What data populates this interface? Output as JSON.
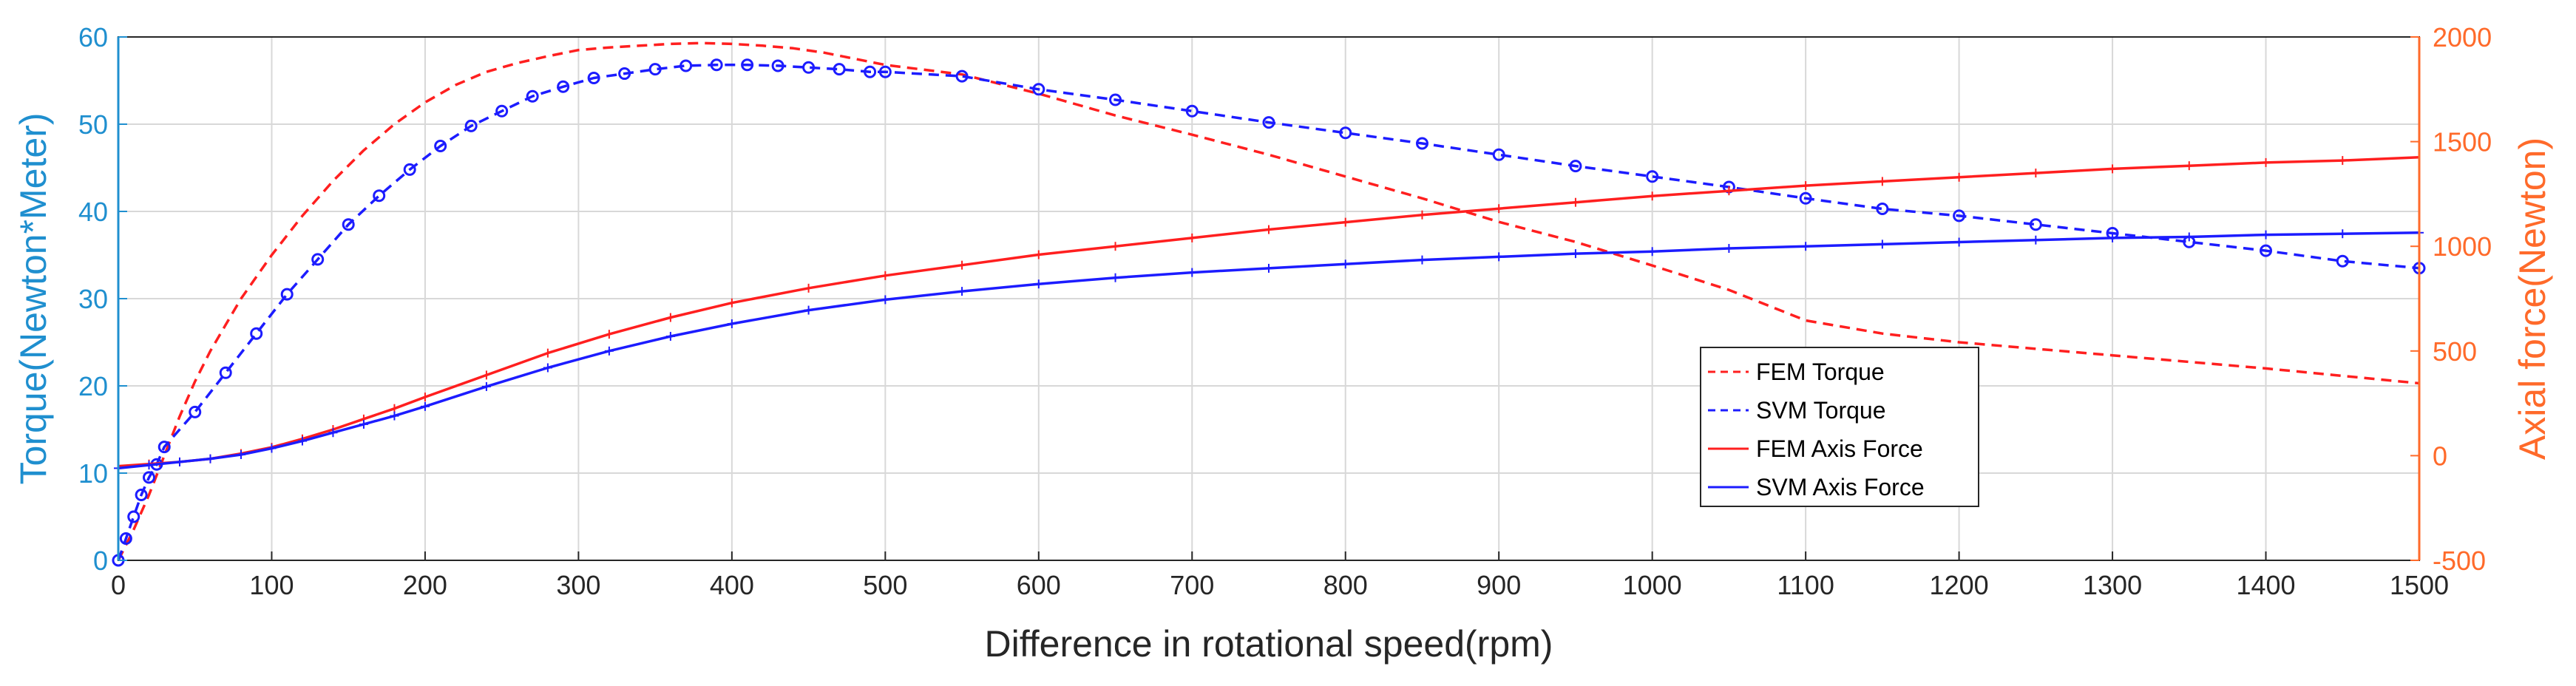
{
  "chart_data": {
    "type": "line",
    "xlabel": "Difference in rotational speed(rpm)",
    "ylabel_left": "Torque(Newton*Meter)",
    "ylabel_right": "Axial force(Newton)",
    "xlim": [
      0,
      1500
    ],
    "ylim_left": [
      0,
      60
    ],
    "ylim_right": [
      -500,
      2000
    ],
    "xticks": [
      "0",
      "100",
      "200",
      "300",
      "400",
      "500",
      "600",
      "700",
      "800",
      "900",
      "1000",
      "1100",
      "1200",
      "1300",
      "1400",
      "1500"
    ],
    "yticks_left": [
      "0",
      "10",
      "20",
      "30",
      "40",
      "50",
      "60"
    ],
    "yticks_right": [
      "-500",
      "0",
      "500",
      "1000",
      "1500",
      "2000"
    ],
    "grid": true,
    "legend_position": "lower-right",
    "colors": {
      "left_axis": "#1f8fcf",
      "right_axis": "#ff6a2a",
      "fem": "#ff1f1f",
      "svm": "#1c1cff"
    },
    "series": [
      {
        "name": "FEM Torque",
        "axis": "left",
        "style": "dashed",
        "color": "#ff1f1f",
        "x": [
          0,
          10,
          20,
          30,
          40,
          50,
          60,
          70,
          80,
          90,
          100,
          120,
          140,
          160,
          180,
          200,
          220,
          240,
          260,
          280,
          300,
          320,
          340,
          360,
          380,
          400,
          420,
          440,
          460,
          480,
          500,
          550,
          600,
          650,
          700,
          750,
          800,
          850,
          900,
          950,
          1000,
          1050,
          1100,
          1150,
          1200,
          1300,
          1400,
          1500
        ],
        "y": [
          0,
          3.5,
          7.5,
          12,
          16.5,
          20.5,
          24,
          27,
          30,
          32.5,
          35,
          39.5,
          43.5,
          47,
          50,
          52.5,
          54.5,
          56,
          57,
          57.8,
          58.5,
          58.8,
          59,
          59.2,
          59.3,
          59.2,
          59,
          58.7,
          58.2,
          57.5,
          56.8,
          55.7,
          53.5,
          51,
          48.8,
          46.5,
          44,
          41.5,
          38.8,
          36.5,
          33.8,
          31,
          27.5,
          26,
          25,
          23.5,
          22,
          20.3
        ]
      },
      {
        "name": "SVM Torque",
        "axis": "left",
        "style": "dashed-markers",
        "color": "#1c1cff",
        "x": [
          0,
          5,
          10,
          15,
          20,
          25,
          30,
          50,
          70,
          90,
          110,
          130,
          150,
          170,
          190,
          210,
          230,
          250,
          270,
          290,
          310,
          330,
          350,
          370,
          390,
          410,
          430,
          450,
          470,
          490,
          500,
          550,
          600,
          650,
          700,
          750,
          800,
          850,
          900,
          950,
          1000,
          1050,
          1100,
          1150,
          1200,
          1250,
          1300,
          1350,
          1400,
          1450,
          1500
        ],
        "y": [
          0,
          2.5,
          5,
          7.5,
          9.5,
          11,
          13,
          17,
          21.5,
          26,
          30.5,
          34.5,
          38.5,
          41.8,
          44.8,
          47.5,
          49.8,
          51.5,
          53.2,
          54.3,
          55.3,
          55.8,
          56.3,
          56.7,
          56.8,
          56.8,
          56.7,
          56.5,
          56.3,
          56,
          56,
          55.5,
          54,
          52.8,
          51.5,
          50.2,
          49,
          47.8,
          46.5,
          45.2,
          44,
          42.8,
          41.5,
          40.3,
          39.5,
          38.5,
          37.5,
          36.5,
          35.5,
          34.3,
          33.5
        ]
      },
      {
        "name": "FEM Axis Force",
        "axis": "right",
        "style": "solid",
        "color": "#ff1f1f",
        "x": [
          0,
          20,
          40,
          60,
          80,
          100,
          120,
          140,
          160,
          180,
          200,
          240,
          280,
          320,
          360,
          400,
          450,
          500,
          550,
          600,
          650,
          700,
          750,
          800,
          850,
          900,
          950,
          1000,
          1050,
          1100,
          1150,
          1200,
          1250,
          1300,
          1350,
          1400,
          1450,
          1500
        ],
        "y": [
          -50,
          -40,
          -30,
          -15,
          10,
          40,
          80,
          125,
          175,
          225,
          280,
          385,
          490,
          580,
          660,
          730,
          800,
          860,
          910,
          960,
          1000,
          1040,
          1080,
          1115,
          1150,
          1180,
          1210,
          1240,
          1265,
          1290,
          1310,
          1330,
          1350,
          1370,
          1385,
          1400,
          1410,
          1425
        ]
      },
      {
        "name": "SVM Axis Force",
        "axis": "right",
        "style": "solid-markers",
        "color": "#1c1cff",
        "x": [
          0,
          20,
          40,
          60,
          80,
          100,
          120,
          140,
          160,
          180,
          200,
          240,
          280,
          320,
          360,
          400,
          450,
          500,
          550,
          600,
          650,
          700,
          750,
          800,
          850,
          900,
          950,
          1000,
          1050,
          1100,
          1150,
          1200,
          1250,
          1300,
          1350,
          1400,
          1450,
          1500
        ],
        "y": [
          -60,
          -45,
          -30,
          -15,
          5,
          35,
          70,
          110,
          150,
          190,
          235,
          330,
          420,
          500,
          570,
          630,
          695,
          745,
          785,
          820,
          850,
          875,
          895,
          915,
          935,
          950,
          965,
          975,
          990,
          1000,
          1010,
          1020,
          1030,
          1040,
          1045,
          1055,
          1060,
          1065
        ]
      }
    ]
  }
}
